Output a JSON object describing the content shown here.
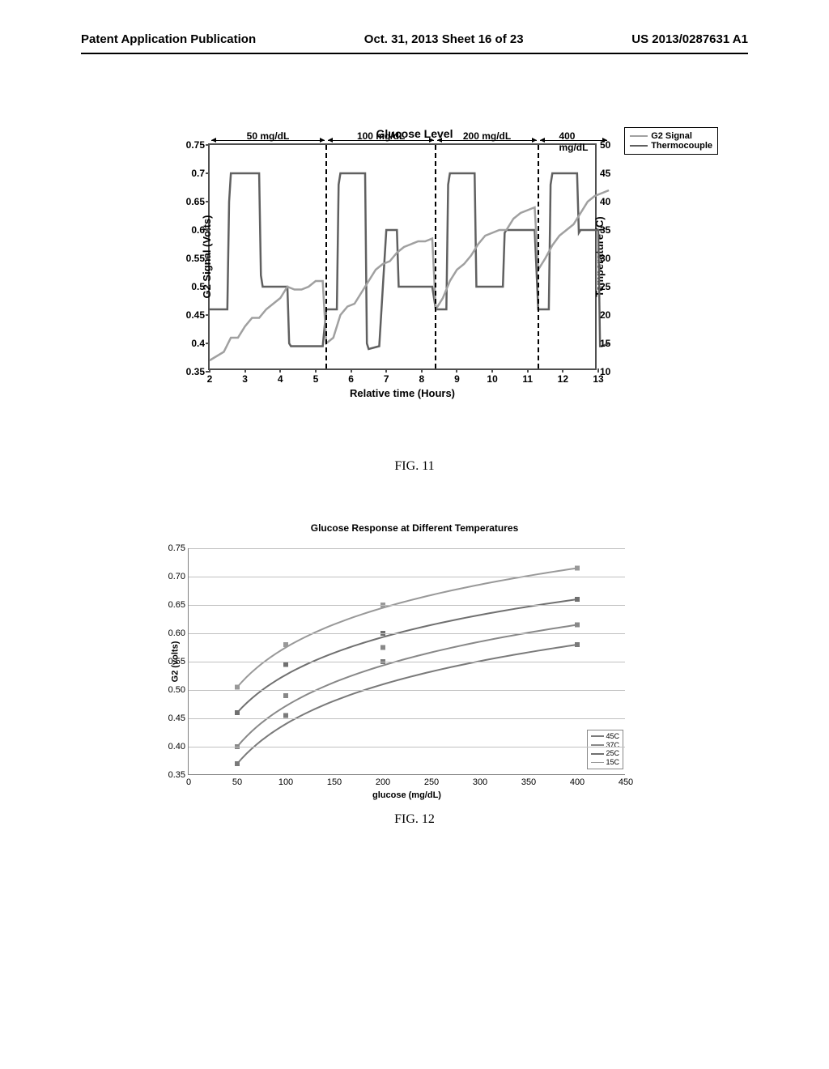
{
  "header": {
    "left": "Patent Application Publication",
    "center": "Oct. 31, 2013  Sheet 16 of 23",
    "right": "US 2013/0287631 A1"
  },
  "figure1": {
    "label": "FIG. 11",
    "title": "Glucose Level",
    "y_axis": {
      "label": "G2 Signal (Volts)",
      "min": 0.35,
      "max": 0.75,
      "ticks": [
        0.35,
        0.4,
        0.45,
        0.5,
        0.55,
        0.6,
        0.65,
        0.7,
        0.75
      ]
    },
    "y2_axis": {
      "label": "Temperature (C)",
      "min": 10,
      "max": 50,
      "ticks": [
        10,
        15,
        20,
        25,
        30,
        35,
        40,
        45,
        50
      ]
    },
    "x_axis": {
      "label": "Relative time (Hours)",
      "min": 2,
      "max": 13,
      "ticks": [
        2,
        3,
        4,
        5,
        6,
        7,
        8,
        9,
        10,
        11,
        12,
        13
      ]
    },
    "regions": [
      {
        "label": "50 mg/dL",
        "start": 2,
        "end": 5.3
      },
      {
        "label": "100 mg/dL",
        "start": 5.3,
        "end": 8.4
      },
      {
        "label": "200 mg/dL",
        "start": 8.4,
        "end": 11.3
      },
      {
        "label": "400 mg/dL",
        "start": 11.3,
        "end": 13.3
      }
    ],
    "legend": [
      {
        "label": "G2 Signal",
        "color": "#a0a0a0"
      },
      {
        "label": "Thermocouple",
        "color": "#606060"
      }
    ],
    "series_g2": {
      "color": "#a0a0a0",
      "width": 2.5,
      "points": [
        [
          2,
          0.37
        ],
        [
          2.4,
          0.385
        ],
        [
          2.6,
          0.41
        ],
        [
          2.8,
          0.41
        ],
        [
          3.0,
          0.43
        ],
        [
          3.2,
          0.445
        ],
        [
          3.4,
          0.445
        ],
        [
          3.6,
          0.46
        ],
        [
          3.8,
          0.47
        ],
        [
          4.0,
          0.48
        ],
        [
          4.2,
          0.5
        ],
        [
          4.4,
          0.495
        ],
        [
          4.6,
          0.495
        ],
        [
          4.8,
          0.5
        ],
        [
          5.0,
          0.51
        ],
        [
          5.2,
          0.51
        ],
        [
          5.3,
          0.4
        ],
        [
          5.5,
          0.41
        ],
        [
          5.7,
          0.45
        ],
        [
          5.9,
          0.465
        ],
        [
          6.1,
          0.47
        ],
        [
          6.3,
          0.49
        ],
        [
          6.5,
          0.51
        ],
        [
          6.7,
          0.53
        ],
        [
          6.9,
          0.54
        ],
        [
          7.1,
          0.545
        ],
        [
          7.3,
          0.56
        ],
        [
          7.5,
          0.57
        ],
        [
          7.7,
          0.575
        ],
        [
          7.9,
          0.58
        ],
        [
          8.1,
          0.58
        ],
        [
          8.3,
          0.585
        ],
        [
          8.4,
          0.46
        ],
        [
          8.6,
          0.48
        ],
        [
          8.8,
          0.51
        ],
        [
          9.0,
          0.53
        ],
        [
          9.2,
          0.54
        ],
        [
          9.4,
          0.555
        ],
        [
          9.6,
          0.575
        ],
        [
          9.8,
          0.59
        ],
        [
          10.0,
          0.595
        ],
        [
          10.2,
          0.6
        ],
        [
          10.4,
          0.6
        ],
        [
          10.6,
          0.62
        ],
        [
          10.8,
          0.63
        ],
        [
          11.0,
          0.635
        ],
        [
          11.2,
          0.64
        ],
        [
          11.3,
          0.53
        ],
        [
          11.5,
          0.55
        ],
        [
          11.7,
          0.573
        ],
        [
          11.9,
          0.59
        ],
        [
          12.1,
          0.6
        ],
        [
          12.3,
          0.61
        ],
        [
          12.5,
          0.63
        ],
        [
          12.7,
          0.65
        ],
        [
          12.9,
          0.66
        ],
        [
          13.1,
          0.665
        ],
        [
          13.3,
          0.67
        ]
      ]
    },
    "series_thermo": {
      "color": "#606060",
      "width": 2.5,
      "points": [
        [
          2,
          0.46
        ],
        [
          2.5,
          0.46
        ],
        [
          2.55,
          0.65
        ],
        [
          2.6,
          0.7
        ],
        [
          3.4,
          0.7
        ],
        [
          3.45,
          0.52
        ],
        [
          3.5,
          0.5
        ],
        [
          4.2,
          0.5
        ],
        [
          4.25,
          0.4
        ],
        [
          4.3,
          0.395
        ],
        [
          5.2,
          0.395
        ],
        [
          5.3,
          0.46
        ],
        [
          5.6,
          0.46
        ],
        [
          5.65,
          0.68
        ],
        [
          5.7,
          0.7
        ],
        [
          6.4,
          0.7
        ],
        [
          6.45,
          0.4
        ],
        [
          6.5,
          0.39
        ],
        [
          6.8,
          0.395
        ],
        [
          7.0,
          0.6
        ],
        [
          7.3,
          0.6
        ],
        [
          7.35,
          0.5
        ],
        [
          7.4,
          0.5
        ],
        [
          8.3,
          0.5
        ],
        [
          8.4,
          0.46
        ],
        [
          8.7,
          0.46
        ],
        [
          8.75,
          0.68
        ],
        [
          8.8,
          0.7
        ],
        [
          9.5,
          0.7
        ],
        [
          9.55,
          0.5
        ],
        [
          9.6,
          0.5
        ],
        [
          10.3,
          0.5
        ],
        [
          10.35,
          0.595
        ],
        [
          10.4,
          0.6
        ],
        [
          11.2,
          0.6
        ],
        [
          11.3,
          0.46
        ],
        [
          11.6,
          0.46
        ],
        [
          11.65,
          0.68
        ],
        [
          11.7,
          0.7
        ],
        [
          12.4,
          0.7
        ],
        [
          12.45,
          0.595
        ],
        [
          12.5,
          0.6
        ],
        [
          13.0,
          0.6
        ],
        [
          13.05,
          0.395
        ],
        [
          13.1,
          0.395
        ],
        [
          13.3,
          0.4
        ]
      ]
    }
  },
  "figure2": {
    "label": "FIG. 12",
    "title": "Glucose Response at Different Temperatures",
    "y_axis": {
      "label": "G2 (volts)",
      "min": 0.35,
      "max": 0.75,
      "ticks": [
        0.35,
        0.4,
        0.45,
        0.5,
        0.55,
        0.6,
        0.65,
        0.7,
        0.75
      ]
    },
    "x_axis": {
      "label": "glucose (mg/dL)",
      "min": 0,
      "max": 450,
      "ticks": [
        0,
        50,
        100,
        150,
        200,
        250,
        300,
        350,
        400,
        450
      ]
    },
    "grid_color": "#c0c0c0",
    "series": [
      {
        "name": "45C",
        "color": "#7a7a7a",
        "marker": "diamond",
        "points": [
          [
            50,
            0.37
          ],
          [
            100,
            0.455
          ],
          [
            200,
            0.55
          ],
          [
            400,
            0.58
          ]
        ]
      },
      {
        "name": "37C",
        "color": "#888888",
        "marker": "square",
        "points": [
          [
            50,
            0.4
          ],
          [
            100,
            0.49
          ],
          [
            200,
            0.575
          ],
          [
            400,
            0.615
          ]
        ]
      },
      {
        "name": "25C",
        "color": "#707070",
        "marker": "triangle",
        "points": [
          [
            50,
            0.46
          ],
          [
            100,
            0.545
          ],
          [
            200,
            0.6
          ],
          [
            400,
            0.66
          ]
        ]
      },
      {
        "name": "15C",
        "color": "#999999",
        "marker": "square",
        "points": [
          [
            50,
            0.505
          ],
          [
            100,
            0.58
          ],
          [
            200,
            0.65
          ],
          [
            400,
            0.715
          ]
        ]
      }
    ]
  }
}
